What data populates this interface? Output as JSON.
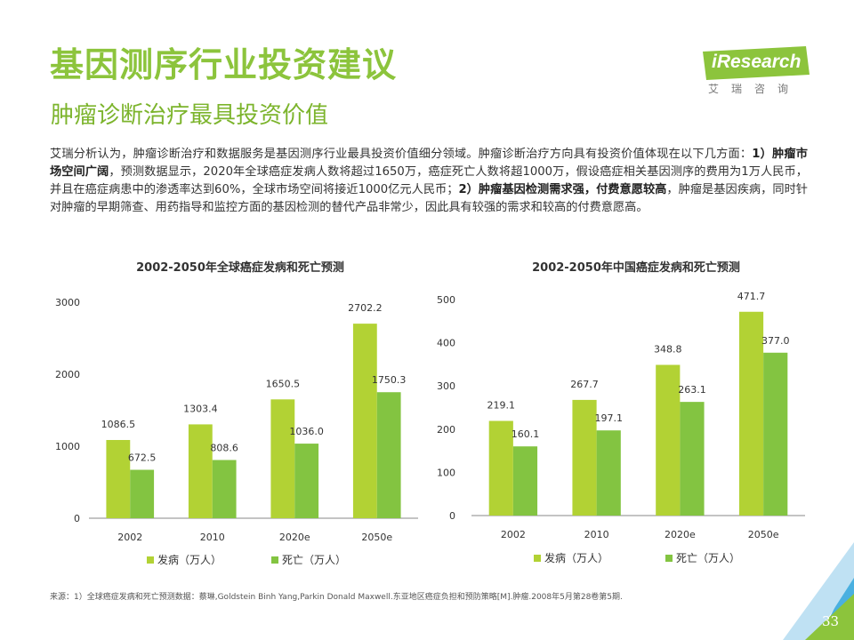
{
  "header": {
    "title": "基因测序行业投资建议",
    "subtitle": "肿瘤诊断治疗最具投资价值"
  },
  "logo": {
    "text": "iResearch",
    "cn": "艾瑞咨询"
  },
  "paragraph": {
    "p1": "艾瑞分析认为，肿瘤诊断治疗和数据服务是基因测序行业最具投资价值细分领域。肿瘤诊断治疗方向具有投资价值体现在以下几方面：",
    "b1": "1）肿瘤市场空间广阔",
    "p2": "，预测数据显示，2020年全球癌症发病人数将超过1650万，癌症死亡人数将超1000万，假设癌症相关基因测序的费用为1万人民币，并且在癌症病患中的渗透率达到60%，全球市场空间将接近1000亿元人民币；",
    "b2": "2）肿瘤基因检测需求强，付费意愿较高",
    "p3": "，肿瘤是基因疾病，同时针对肿瘤的早期筛查、用药指导和监控方面的基因检测的替代产品非常少，因此具有较强的需求和较高的付费意愿高。"
  },
  "colors": {
    "incidence": "#b2d234",
    "death": "#83c441",
    "title": "#8cc43c",
    "axis": "#888888"
  },
  "chart_data": [
    {
      "type": "bar",
      "title": "2002-2050年全球癌症发病和死亡预测",
      "categories": [
        "2002",
        "2010",
        "2020e",
        "2050e"
      ],
      "series": [
        {
          "name": "发病（万人）",
          "values": [
            1086.5,
            1303.4,
            1650.5,
            2702.2
          ]
        },
        {
          "name": "死亡（万人）",
          "values": [
            672.5,
            808.6,
            1036.0,
            1750.3
          ]
        }
      ],
      "yticks": [
        "0",
        "1000",
        "2000",
        "3000"
      ],
      "ylim": [
        0,
        3000
      ],
      "legend": "bottom"
    },
    {
      "type": "bar",
      "title": "2002-2050年中国癌症发病和死亡预测",
      "categories": [
        "2002",
        "2010",
        "2020e",
        "2050e"
      ],
      "series": [
        {
          "name": "发病（万人）",
          "values": [
            219.1,
            267.7,
            348.8,
            471.7
          ]
        },
        {
          "name": "死亡（万人）",
          "values": [
            160.1,
            197.1,
            263.1,
            377.0
          ]
        }
      ],
      "yticks": [
        "0",
        "100",
        "200",
        "300",
        "400",
        "500"
      ],
      "ylim": [
        0,
        500
      ],
      "legend": "bottom"
    }
  ],
  "source": "来源：1）全球癌症发病和死亡预测数据：蔡琳,Goldstein Binh Yang,Parkin Donald Maxwell.东亚地区癌症负担和预防策略[M].肿瘤.2008年5月第28卷第5期.",
  "page_number": "33"
}
